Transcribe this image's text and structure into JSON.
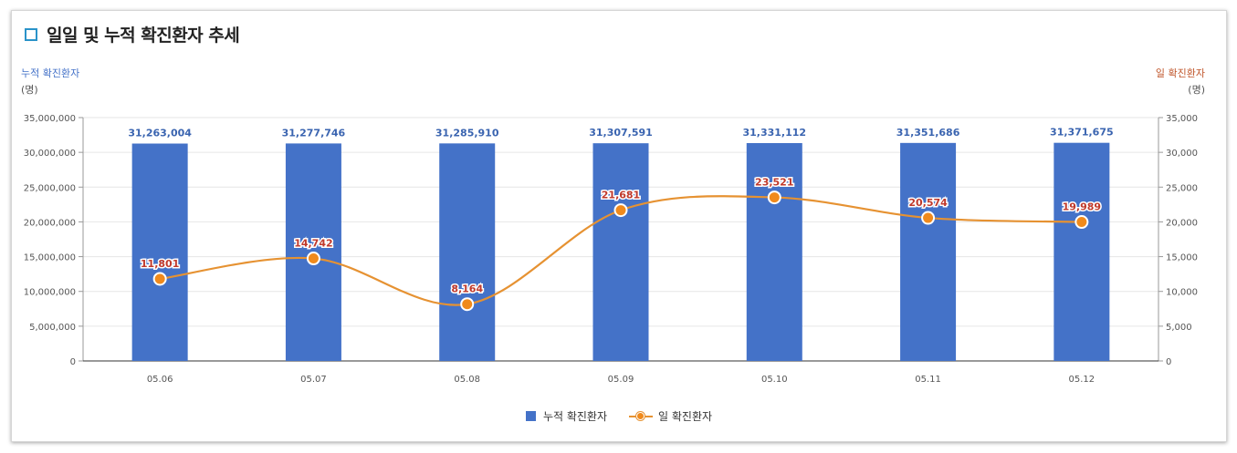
{
  "title": "일일 및 누적 확진환자 추세",
  "colors": {
    "cumulative": "#4472c8",
    "daily": "#e69232",
    "daily_marker": "#f08a1c",
    "daily_label": "#c0392b",
    "title_icon": "#2a93c9"
  },
  "chart_data": {
    "type": "bar+line",
    "categories": [
      "05.06",
      "05.07",
      "05.08",
      "05.09",
      "05.10",
      "05.11",
      "05.12"
    ],
    "left_axis": {
      "label": "누적 확진환자",
      "unit": "(명)",
      "ylim": [
        0,
        35000000
      ],
      "ticks": [
        "0",
        "5,000,000",
        "10,000,000",
        "15,000,000",
        "20,000,000",
        "25,000,000",
        "30,000,000",
        "35,000,000"
      ]
    },
    "right_axis": {
      "label": "일 확진환자",
      "unit": "(명)",
      "ylim": [
        0,
        35000
      ],
      "ticks": [
        "0",
        "5,000",
        "10,000",
        "15,000",
        "20,000",
        "25,000",
        "30,000",
        "35,000"
      ]
    },
    "series": [
      {
        "name": "누적 확진환자",
        "type": "bar",
        "axis": "left",
        "values": [
          31263004,
          31277746,
          31285910,
          31307591,
          31331112,
          31351686,
          31371675
        ],
        "labels": [
          "31,263,004",
          "31,277,746",
          "31,285,910",
          "31,307,591",
          "31,331,112",
          "31,351,686",
          "31,371,675"
        ]
      },
      {
        "name": "일 확진환자",
        "type": "line",
        "axis": "right",
        "values": [
          11801,
          14742,
          8164,
          21681,
          23521,
          20574,
          19989
        ],
        "labels": [
          "11,801",
          "14,742",
          "8,164",
          "21,681",
          "23,521",
          "20,574",
          "19,989"
        ]
      }
    ],
    "grid": true,
    "legend_position": "bottom-center"
  }
}
